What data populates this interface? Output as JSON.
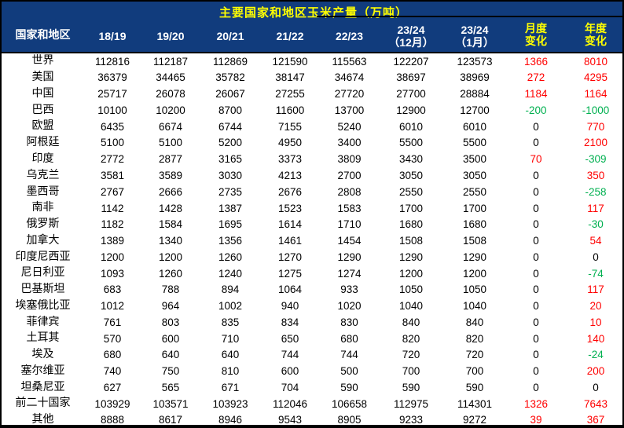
{
  "title": "主要国家和地区玉米产量（万吨）",
  "colors": {
    "header_bg": "#113C7D",
    "title_text": "#FFFF00",
    "header_text": "#FFFFFF",
    "accent_header_text": "#FFFF00",
    "positive_change": "#FF0000",
    "negative_change": "#00B050",
    "zero_change": "#000000"
  },
  "table": {
    "columns": [
      {
        "label": "国家和地区",
        "type": "name"
      },
      {
        "label": "18/19",
        "type": "value"
      },
      {
        "label": "19/20",
        "type": "value"
      },
      {
        "label": "20/21",
        "type": "value"
      },
      {
        "label": "21/22",
        "type": "value"
      },
      {
        "label": "22/23",
        "type": "value"
      },
      {
        "label": "23/24\n（12月）",
        "type": "value"
      },
      {
        "label": "23/24\n（1月）",
        "type": "value"
      },
      {
        "label": "月度\n变化",
        "type": "change"
      },
      {
        "label": "年度\n变化",
        "type": "change"
      }
    ],
    "rows": [
      {
        "name": "世界",
        "values": [
          112816,
          112187,
          112869,
          121590,
          115563,
          122207,
          123573,
          1366,
          8010
        ]
      },
      {
        "name": "美国",
        "values": [
          36379,
          34465,
          35782,
          38147,
          34674,
          38697,
          38969,
          272,
          4295
        ]
      },
      {
        "name": "中国",
        "values": [
          25717,
          26078,
          26067,
          27255,
          27720,
          27700,
          28884,
          1184,
          1164
        ]
      },
      {
        "name": "巴西",
        "values": [
          10100,
          10200,
          8700,
          11600,
          13700,
          12900,
          12700,
          -200,
          -1000
        ]
      },
      {
        "name": "欧盟",
        "values": [
          6435,
          6674,
          6744,
          7155,
          5240,
          6010,
          6010,
          0,
          770
        ]
      },
      {
        "name": "阿根廷",
        "values": [
          5100,
          5100,
          5200,
          4950,
          3400,
          5500,
          5500,
          0,
          2100
        ]
      },
      {
        "name": "印度",
        "values": [
          2772,
          2877,
          3165,
          3373,
          3809,
          3430,
          3500,
          70,
          -309
        ]
      },
      {
        "name": "乌克兰",
        "values": [
          3581,
          3589,
          3030,
          4213,
          2700,
          3050,
          3050,
          0,
          350
        ]
      },
      {
        "name": "墨西哥",
        "values": [
          2767,
          2666,
          2735,
          2676,
          2808,
          2550,
          2550,
          0,
          -258
        ]
      },
      {
        "name": "南非",
        "values": [
          1142,
          1428,
          1387,
          1523,
          1583,
          1700,
          1700,
          0,
          117
        ]
      },
      {
        "name": "俄罗斯",
        "values": [
          1182,
          1584,
          1695,
          1614,
          1710,
          1680,
          1680,
          0,
          -30
        ]
      },
      {
        "name": "加拿大",
        "values": [
          1389,
          1340,
          1356,
          1461,
          1454,
          1508,
          1508,
          0,
          54
        ]
      },
      {
        "name": "印度尼西亚",
        "values": [
          1200,
          1200,
          1260,
          1270,
          1290,
          1290,
          1290,
          0,
          0
        ]
      },
      {
        "name": "尼日利亚",
        "values": [
          1093,
          1260,
          1240,
          1275,
          1274,
          1200,
          1200,
          0,
          -74
        ]
      },
      {
        "name": "巴基斯坦",
        "values": [
          683,
          788,
          894,
          1064,
          933,
          1050,
          1050,
          0,
          117
        ]
      },
      {
        "name": "埃塞俄比亚",
        "values": [
          1012,
          964,
          1002,
          940,
          1020,
          1040,
          1040,
          0,
          20
        ]
      },
      {
        "name": "菲律宾",
        "values": [
          761,
          803,
          835,
          834,
          830,
          840,
          840,
          0,
          10
        ]
      },
      {
        "name": "土耳其",
        "values": [
          570,
          600,
          710,
          650,
          680,
          820,
          820,
          0,
          140
        ]
      },
      {
        "name": "埃及",
        "values": [
          680,
          640,
          640,
          744,
          744,
          720,
          720,
          0,
          -24
        ]
      },
      {
        "name": "塞尔维亚",
        "values": [
          740,
          750,
          810,
          600,
          500,
          700,
          700,
          0,
          200
        ]
      },
      {
        "name": "坦桑尼亚",
        "values": [
          627,
          565,
          671,
          704,
          590,
          590,
          590,
          0,
          0
        ]
      },
      {
        "name": "前二十国家",
        "values": [
          103929,
          103571,
          103923,
          112046,
          106658,
          112975,
          114301,
          1326,
          7643
        ]
      },
      {
        "name": "其他",
        "values": [
          8888,
          8617,
          8946,
          9543,
          8905,
          9233,
          9272,
          39,
          367
        ]
      }
    ]
  }
}
